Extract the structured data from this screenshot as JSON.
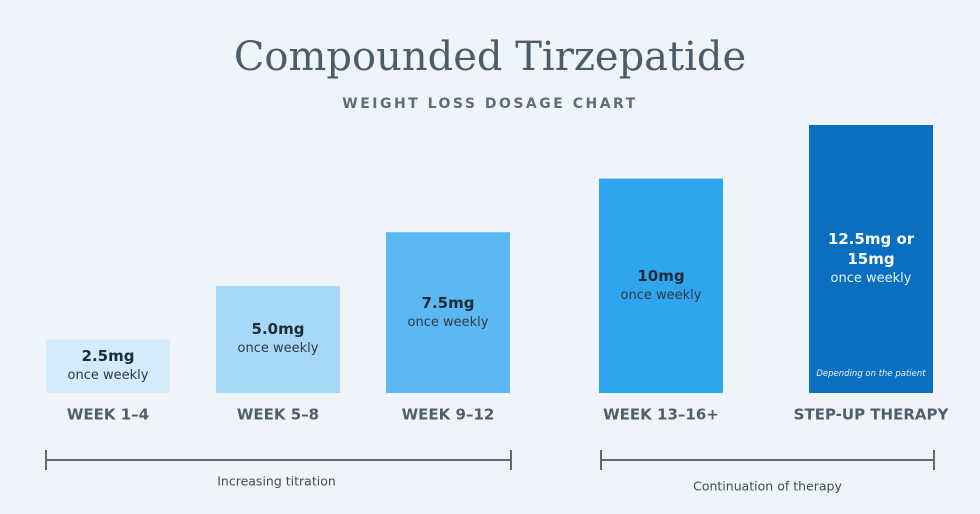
{
  "chart_data": {
    "type": "bar",
    "title": "Compounded Tirzepatide",
    "subtitle": "WEIGHT LOSS DOSAGE CHART",
    "categories": [
      "WEEK 1–4",
      "WEEK 5–8",
      "WEEK 9–12",
      "WEEK 13–16+",
      "STEP-UP THERAPY"
    ],
    "values": [
      2.5,
      5.0,
      7.5,
      10,
      12.5
    ],
    "value_labels": [
      "2.5mg",
      "5.0mg",
      "7.5mg",
      "10mg",
      "12.5mg or 15mg"
    ],
    "sub_label": "once weekly",
    "colors": [
      "#d4ebfb",
      "#a8d8f8",
      "#5bb8f2",
      "#2fa5ee",
      "#0b6fc1"
    ],
    "note": "Depending on the patient",
    "brackets": [
      "Increasing titration",
      "Continuation of therapy"
    ]
  }
}
